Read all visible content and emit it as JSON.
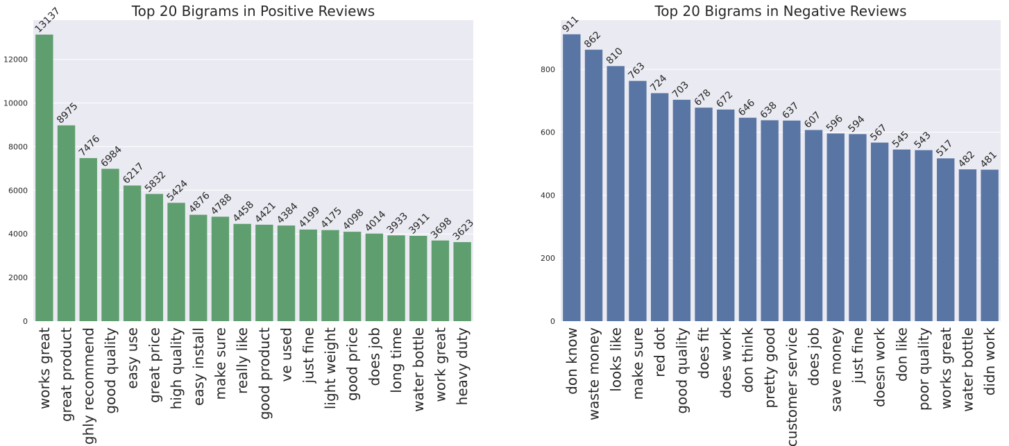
{
  "chart_data": [
    {
      "type": "bar",
      "title": "Top 20 Bigrams in Positive Reviews",
      "xlabel": "",
      "ylabel": "",
      "color": "#5f9e6e",
      "ylim": [
        0,
        13800
      ],
      "yticks": [
        0,
        2000,
        4000,
        6000,
        8000,
        10000,
        12000
      ],
      "categories": [
        "works great",
        "great product",
        "highly recommend",
        "good quality",
        "easy use",
        "great price",
        "high quality",
        "easy install",
        "make sure",
        "really like",
        "good product",
        "ve used",
        "just fine",
        "light weight",
        "good price",
        "does job",
        "long time",
        "water bottle",
        "work great",
        "heavy duty"
      ],
      "values": [
        13137,
        8975,
        7476,
        6984,
        6217,
        5832,
        5424,
        4876,
        4788,
        4458,
        4421,
        4384,
        4199,
        4175,
        4098,
        4014,
        3933,
        3911,
        3698,
        3623
      ],
      "grid": true
    },
    {
      "type": "bar",
      "title": "Top 20 Bigrams in Negative Reviews",
      "xlabel": "",
      "ylabel": "",
      "color": "#5975a4",
      "ylim": [
        0,
        956
      ],
      "yticks": [
        0,
        200,
        400,
        600,
        800
      ],
      "categories": [
        "don know",
        "waste money",
        "looks like",
        "make sure",
        "red dot",
        "good quality",
        "does fit",
        "does work",
        "don think",
        "pretty good",
        "customer service",
        "does job",
        "save money",
        "just fine",
        "doesn work",
        "don like",
        "poor quality",
        "works great",
        "water bottle",
        "didn work"
      ],
      "values": [
        911,
        862,
        810,
        763,
        724,
        703,
        678,
        672,
        646,
        638,
        637,
        607,
        596,
        594,
        567,
        545,
        543,
        517,
        482,
        481
      ],
      "grid": true
    }
  ]
}
